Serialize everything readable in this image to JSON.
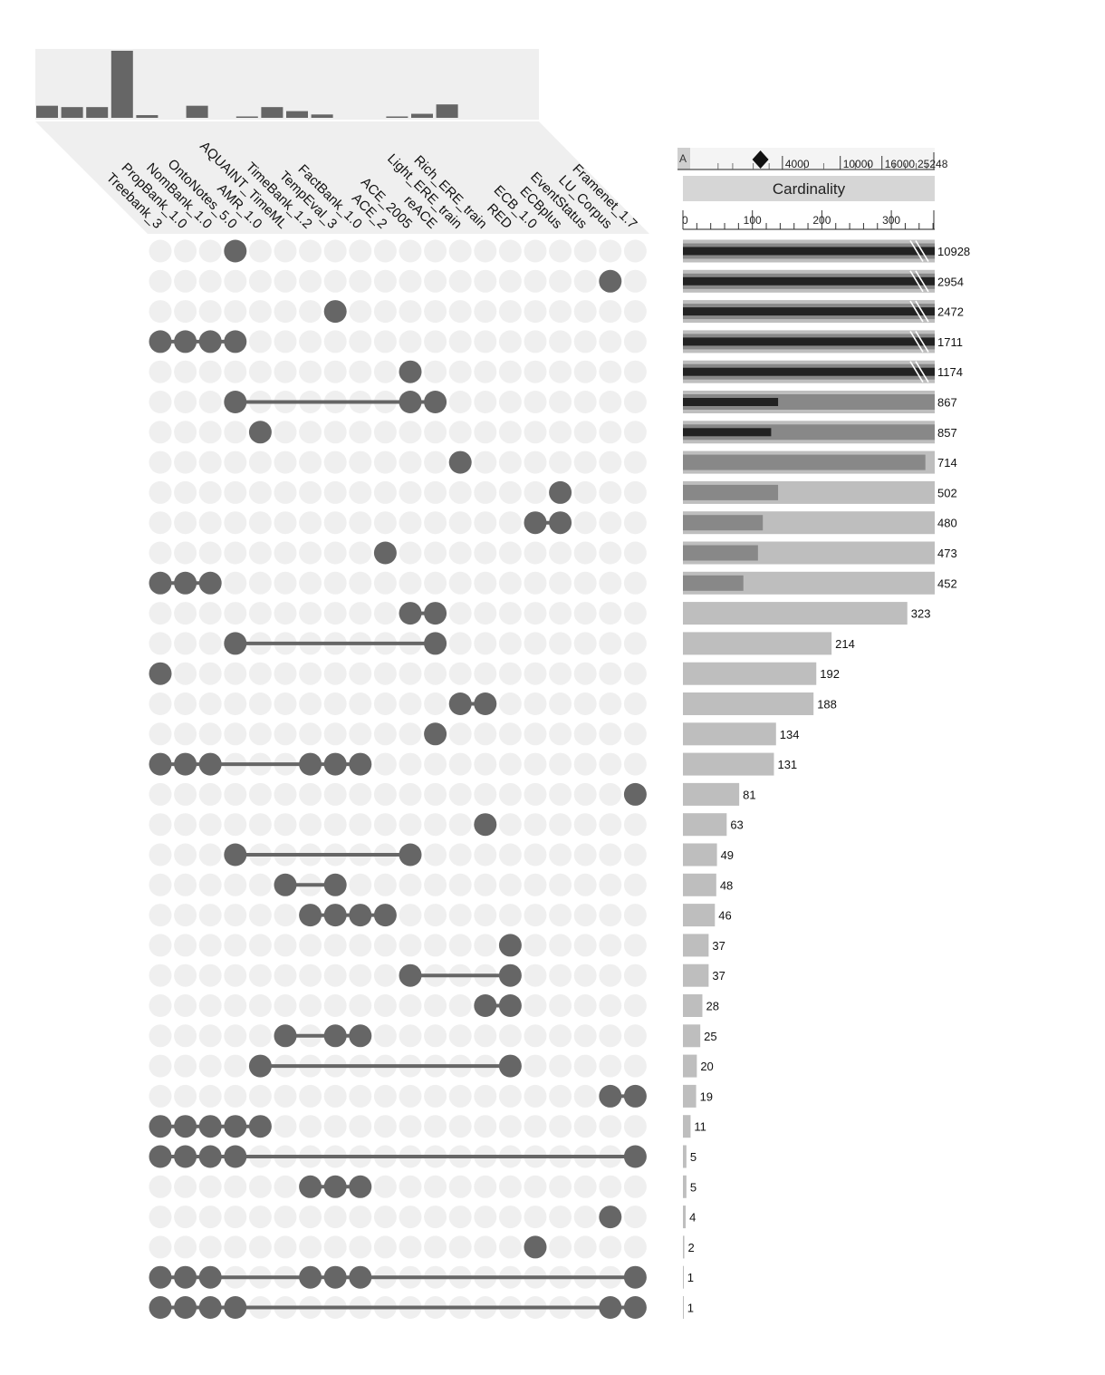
{
  "chart_data": {
    "type": "upset",
    "sets": [
      "Treebank_3",
      "PropBank_1.0",
      "NomBank_1.0",
      "OntoNotes_5.0",
      "AMR_1.0",
      "AQUAINT_TimeML",
      "TimeBank_1.2",
      "TempEval_3",
      "FactBank_1.0",
      "ACE_2",
      "ACE_2005",
      "reACE",
      "Light_ERE_train",
      "Rich_ERE_train",
      "RED",
      "ECB_1.0",
      "ECBplus",
      "EventStatus",
      "LU_Corpus",
      "Framenet_1.7"
    ],
    "set_size_bars": [
      0.18,
      0.16,
      0.16,
      1.0,
      0.04,
      0,
      0.18,
      0,
      0.02,
      0.16,
      0.1,
      0.05,
      0,
      0,
      0.02,
      0.06,
      0.2,
      0,
      0,
      0
    ],
    "intersections": [
      {
        "sets": [
          3
        ],
        "cardinality": 10928
      },
      {
        "sets": [
          18
        ],
        "cardinality": 2954
      },
      {
        "sets": [
          7
        ],
        "cardinality": 2472
      },
      {
        "sets": [
          0,
          1,
          2,
          3
        ],
        "cardinality": 1711
      },
      {
        "sets": [
          10
        ],
        "cardinality": 1174
      },
      {
        "sets": [
          3,
          10,
          11
        ],
        "cardinality": 867
      },
      {
        "sets": [
          4
        ],
        "cardinality": 857
      },
      {
        "sets": [
          12
        ],
        "cardinality": 714
      },
      {
        "sets": [
          16
        ],
        "cardinality": 502
      },
      {
        "sets": [
          15,
          16
        ],
        "cardinality": 480
      },
      {
        "sets": [
          9
        ],
        "cardinality": 473
      },
      {
        "sets": [
          0,
          1,
          2
        ],
        "cardinality": 452
      },
      {
        "sets": [
          10,
          11
        ],
        "cardinality": 323
      },
      {
        "sets": [
          3,
          11
        ],
        "cardinality": 214
      },
      {
        "sets": [
          0
        ],
        "cardinality": 192
      },
      {
        "sets": [
          12,
          13
        ],
        "cardinality": 188
      },
      {
        "sets": [
          11
        ],
        "cardinality": 134
      },
      {
        "sets": [
          0,
          1,
          2,
          6,
          7,
          8
        ],
        "cardinality": 131
      },
      {
        "sets": [
          19
        ],
        "cardinality": 81
      },
      {
        "sets": [
          13
        ],
        "cardinality": 63
      },
      {
        "sets": [
          3,
          10
        ],
        "cardinality": 49
      },
      {
        "sets": [
          5,
          7
        ],
        "cardinality": 48
      },
      {
        "sets": [
          6,
          7,
          8,
          9
        ],
        "cardinality": 46
      },
      {
        "sets": [
          14
        ],
        "cardinality": 37
      },
      {
        "sets": [
          10,
          14
        ],
        "cardinality": 37
      },
      {
        "sets": [
          13,
          14
        ],
        "cardinality": 28
      },
      {
        "sets": [
          5,
          7,
          8
        ],
        "cardinality": 25
      },
      {
        "sets": [
          4,
          14
        ],
        "cardinality": 20
      },
      {
        "sets": [
          18,
          19
        ],
        "cardinality": 19
      },
      {
        "sets": [
          0,
          1,
          2,
          3,
          4
        ],
        "cardinality": 11
      },
      {
        "sets": [
          0,
          1,
          2,
          3,
          19
        ],
        "cardinality": 5
      },
      {
        "sets": [
          6,
          7,
          8
        ],
        "cardinality": 5
      },
      {
        "sets": [
          18
        ],
        "cardinality": 4
      },
      {
        "sets": [
          15
        ],
        "cardinality": 2
      },
      {
        "sets": [
          0,
          1,
          2,
          6,
          7,
          8,
          19
        ],
        "cardinality": 1
      },
      {
        "sets": [
          0,
          1,
          2,
          3,
          18,
          19
        ],
        "cardinality": 1
      }
    ],
    "cardinality_axis": {
      "label": "Cardinality",
      "ticks": [
        0,
        100,
        200,
        300
      ],
      "max": 365,
      "scale": "piecewise"
    },
    "overview_scale": {
      "left_label": "A",
      "ticks": [
        4000,
        10000,
        16000
      ],
      "max_label": "25248",
      "max": 25248,
      "marker_value": 1100
    },
    "colors": {
      "dot_active": "#666666",
      "dot_inactive": "#efefef",
      "connector": "#666666",
      "bar_full": "#bebebe",
      "bar_mid": "#888888",
      "bar_dark": "#222222",
      "panel_bg": "#efefef",
      "header_bg": "#d6d6d6"
    }
  }
}
